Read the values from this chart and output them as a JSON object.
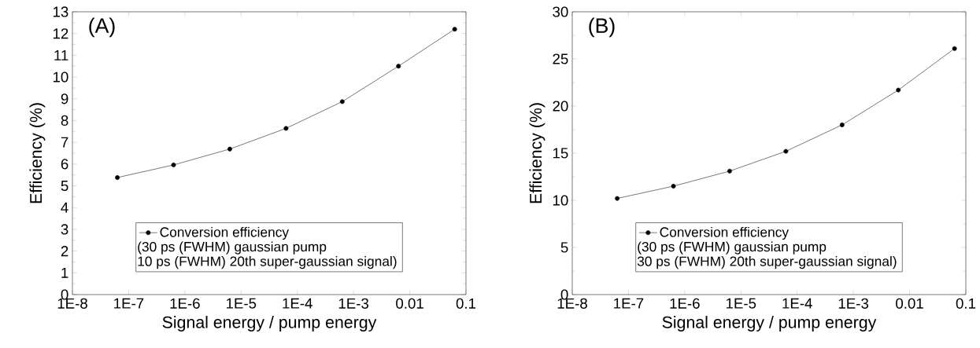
{
  "chart_data": [
    {
      "type": "line",
      "title": "(A)",
      "xlabel": "Signal energy / pump energy",
      "ylabel": "Efficiency (%)",
      "log": "x",
      "marker": "circle",
      "line_style": "solid",
      "legend": "bottom",
      "xlim": [
        1e-08,
        0.1
      ],
      "ylim": [
        0,
        13
      ],
      "xticks": [
        {
          "value": 1e-08,
          "label": "1E-8"
        },
        {
          "value": 1e-07,
          "label": "1E-7"
        },
        {
          "value": 1e-06,
          "label": "1E-6"
        },
        {
          "value": 1e-05,
          "label": "1E-5"
        },
        {
          "value": 0.0001,
          "label": "1E-4"
        },
        {
          "value": 0.001,
          "label": "1E-3"
        },
        {
          "value": 0.01,
          "label": "0.01"
        },
        {
          "value": 0.1,
          "label": "0.1"
        }
      ],
      "yticks": [
        0,
        1,
        2,
        3,
        4,
        5,
        6,
        7,
        8,
        9,
        10,
        11,
        12,
        13
      ],
      "x": [
        6.3e-08,
        6.3e-07,
        6.3e-06,
        6.3e-05,
        0.00063,
        0.0063,
        0.063
      ],
      "series": [
        {
          "name": "Conversion efficiency",
          "color": "#000000",
          "values": [
            5.38,
            5.96,
            6.69,
            7.64,
            8.87,
            10.5,
            12.2
          ]
        }
      ],
      "annotations": [
        "(30 ps (FWHM)  gaussian pump",
        "10 ps (FWHM)  20th super-gaussian signal)"
      ]
    },
    {
      "type": "line",
      "title": "(B)",
      "xlabel": "Signal energy / pump energy",
      "ylabel": "Efficiency (%)",
      "log": "x",
      "marker": "circle",
      "line_style": "solid",
      "legend": "bottom",
      "xlim": [
        1e-08,
        0.1
      ],
      "ylim": [
        0,
        30
      ],
      "xticks": [
        {
          "value": 1e-08,
          "label": "1E-8"
        },
        {
          "value": 1e-07,
          "label": "1E-7"
        },
        {
          "value": 1e-06,
          "label": "1E-6"
        },
        {
          "value": 1e-05,
          "label": "1E-5"
        },
        {
          "value": 0.0001,
          "label": "1E-4"
        },
        {
          "value": 0.001,
          "label": "1E-3"
        },
        {
          "value": 0.01,
          "label": "0.01"
        },
        {
          "value": 0.1,
          "label": "0.1"
        }
      ],
      "yticks": [
        0,
        5,
        10,
        15,
        20,
        25,
        30
      ],
      "x": [
        6.3e-08,
        6.3e-07,
        6.3e-06,
        6.3e-05,
        0.00063,
        0.0063,
        0.063
      ],
      "series": [
        {
          "name": "Conversion efficiency",
          "color": "#000000",
          "values": [
            10.2,
            11.5,
            13.1,
            15.2,
            18.0,
            21.7,
            26.1
          ]
        }
      ],
      "annotations": [
        "(30 ps (FWHM)  gaussian pump",
        "30 ps (FWHM)  20th super-gaussian signal)"
      ]
    }
  ]
}
